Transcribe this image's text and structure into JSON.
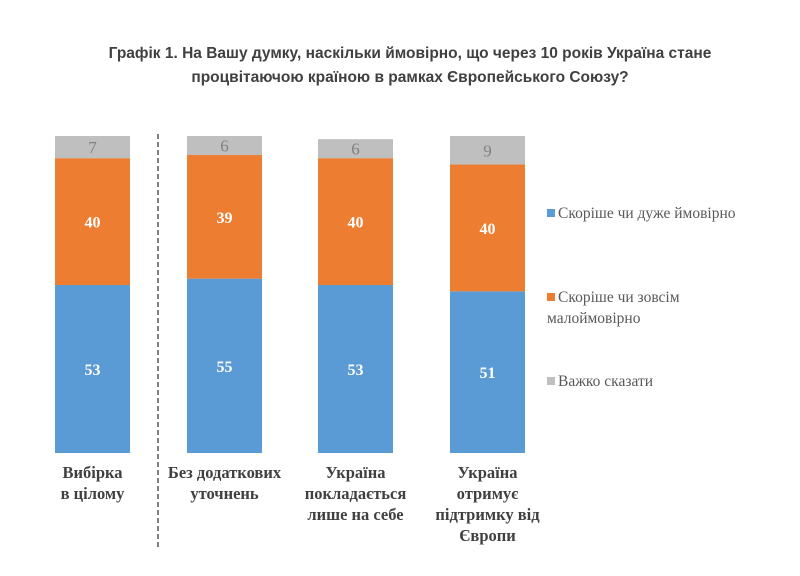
{
  "chart_data": {
    "type": "bar",
    "stacked": true,
    "title": "Графік 1. На Вашу думку, наскільки ймовірно, що через 10 років Україна стане процвітаючою країною в рамках Європейського Союзу?",
    "title_lines": [
      "Графік 1. На Вашу думку, наскільки ймовірно, що через 10 років Україна стане",
      "процвітаючою країною в рамках Європейського Союзу?"
    ],
    "categories": [
      "Вибірка в цілому",
      "Без додаткових уточнень",
      "Україна покладається лише на себе",
      "Україна отримує підтримку від Європи"
    ],
    "category_lines": [
      [
        "Вибірка",
        "в цілому"
      ],
      [
        "Без додаткових",
        "уточнень"
      ],
      [
        "Україна",
        "покладається",
        "лише на себе"
      ],
      [
        "Україна",
        "отримує",
        "підтримку від",
        "Європи"
      ]
    ],
    "series": [
      {
        "name": "Скоріше чи дуже ймовірно",
        "color": "#5b9bd5",
        "values": [
          53,
          55,
          53,
          51
        ]
      },
      {
        "name": "Скоріше чи зовсім малоймовірно",
        "color": "#ed7d31",
        "values": [
          40,
          39,
          40,
          40
        ]
      },
      {
        "name": "Важко сказати",
        "color": "#bfbfbf",
        "values": [
          7,
          6,
          6,
          9
        ]
      }
    ],
    "legend_lines": [
      [
        "Скоріше чи дуже ймовірно"
      ],
      [
        "Скоріше чи зовсім",
        "малоймовірно"
      ],
      [
        "Важко сказати"
      ]
    ],
    "ylim": [
      0,
      100
    ],
    "legend_position": "right",
    "grid": false,
    "separator_after_category": 0
  }
}
